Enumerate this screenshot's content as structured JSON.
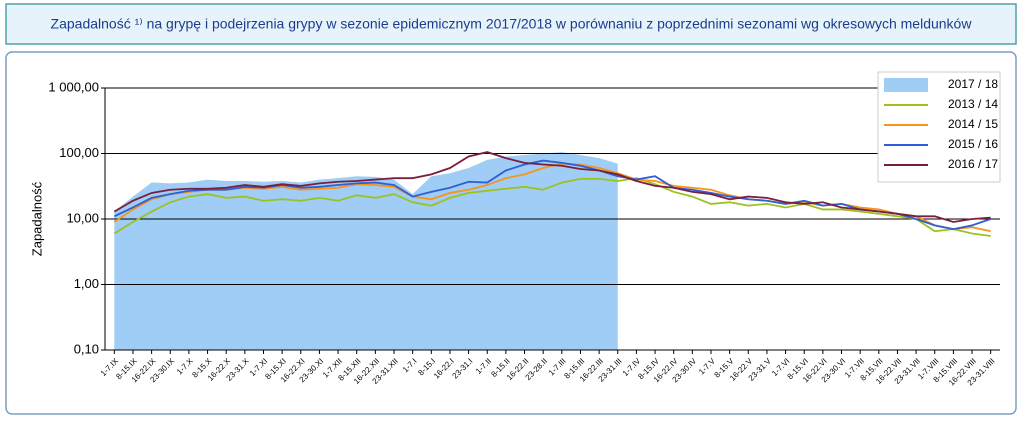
{
  "chart_data": {
    "type": "line",
    "title": "Zapadalność ¹⁾ na grypę i podejrzenia grypy w sezonie epidemicznym 2017/2018 w porównaniu z poprzednimi sezonami wg okresowych meldunków",
    "y_label": "Zapadalność",
    "log_y": true,
    "grid": true,
    "legend": "upper right",
    "ylim": [
      0.1,
      1000
    ],
    "yticks": [
      {
        "value": 0.1,
        "label": "0,10"
      },
      {
        "value": 1,
        "label": "1,00"
      },
      {
        "value": 10,
        "label": "10,00"
      },
      {
        "value": 100,
        "label": "100,00"
      },
      {
        "value": 1000,
        "label": "1 000,00"
      }
    ],
    "categories": [
      "1-7.IX",
      "8-15.IX",
      "16-22.IX",
      "23-30.IX",
      "1-7.X",
      "8-15.X",
      "16-22.X",
      "23-31.X",
      "1-7.XI",
      "8-15.XI",
      "16-22.XI",
      "23-30.XI",
      "1-7.XII",
      "8-15.XII",
      "16-22.XII",
      "23-31.XII",
      "1-7.I",
      "8-15.I",
      "16-22.I",
      "23-31.I",
      "1-7.II",
      "8-15.II",
      "16-22.II",
      "23-28.II",
      "1-7.III",
      "8-15.III",
      "16-22.III",
      "23-31.III",
      "1-7.IV",
      "8-15.IV",
      "16-22.IV",
      "23-30.IV",
      "1-7.V",
      "8-15.V",
      "16-22.V",
      "23-31.V",
      "1-7.VI",
      "8-15.VI",
      "16-22.VI",
      "23-30.VI",
      "1-7.VII",
      "8-15.VII",
      "16-22.VII",
      "23-31.VII",
      "1-7.VIII",
      "8-15.VIII",
      "16-22.VIII",
      "23-31.VIII"
    ],
    "series": [
      {
        "name": "2017 / 18",
        "style": "area",
        "color": "#9fcdf5",
        "values": [
          13,
          22,
          36,
          35,
          36,
          40,
          38,
          38,
          37,
          38,
          36,
          40,
          42,
          45,
          44,
          40,
          24,
          45,
          50,
          60,
          80,
          90,
          95,
          100,
          105,
          95,
          85,
          70,
          null,
          null,
          null,
          null,
          null,
          null,
          null,
          null,
          null,
          null,
          null,
          null,
          null,
          null,
          null,
          null,
          null,
          null,
          null,
          null
        ]
      },
      {
        "name": "2013 / 14",
        "style": "line",
        "color": "#9bc21f",
        "values": [
          6,
          9,
          13,
          18,
          22,
          24,
          21,
          22,
          19,
          20,
          19,
          21,
          19,
          23,
          21,
          24,
          18,
          16,
          21,
          25,
          27,
          29,
          31,
          28,
          36,
          41,
          41,
          38,
          42,
          34,
          26,
          22,
          17,
          18,
          16,
          17,
          15,
          17,
          14,
          14,
          13,
          12,
          11,
          10,
          6.5,
          7,
          6,
          5.5
        ]
      },
      {
        "name": "2014 / 15",
        "style": "line",
        "color": "#f7941d",
        "values": [
          9,
          14,
          20,
          24,
          26,
          28,
          28,
          30,
          29,
          31,
          28,
          29,
          30,
          34,
          33,
          31,
          22,
          20,
          25,
          28,
          33,
          42,
          48,
          60,
          70,
          68,
          60,
          50,
          40,
          38,
          32,
          30,
          28,
          23,
          20,
          19,
          17,
          18,
          16,
          17,
          15,
          14,
          12,
          11,
          8,
          7,
          7.5,
          6.5
        ]
      },
      {
        "name": "2015 / 16",
        "style": "line",
        "color": "#2e5fd6",
        "values": [
          11,
          15,
          21,
          24,
          27,
          28,
          28,
          31,
          30,
          33,
          30,
          31,
          33,
          35,
          36,
          33,
          22,
          26,
          30,
          37,
          36,
          55,
          68,
          78,
          72,
          65,
          55,
          45,
          40,
          45,
          30,
          28,
          25,
          22,
          20,
          19,
          17,
          19,
          16,
          17,
          14,
          13,
          12,
          10,
          8,
          7,
          8,
          10
        ]
      },
      {
        "name": "2016 / 17",
        "style": "line",
        "color": "#7a1f3d",
        "values": [
          13,
          19,
          25,
          28,
          29,
          29,
          30,
          33,
          31,
          34,
          32,
          35,
          37,
          38,
          40,
          42,
          42,
          48,
          60,
          90,
          105,
          85,
          72,
          68,
          65,
          58,
          55,
          48,
          38,
          32,
          30,
          26,
          24,
          20,
          22,
          21,
          18,
          17,
          18,
          15,
          14,
          13,
          12,
          11,
          11,
          9,
          10,
          10.5
        ]
      }
    ]
  }
}
